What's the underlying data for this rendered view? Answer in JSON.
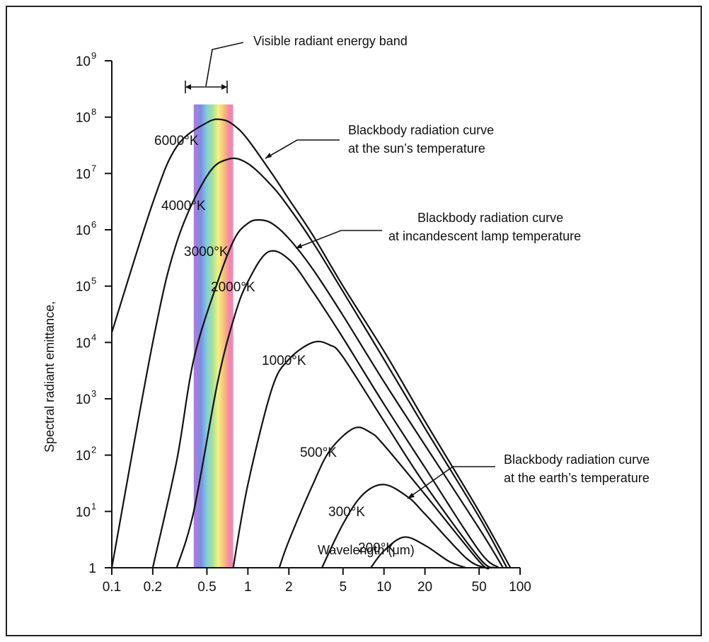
{
  "chart_data": {
    "type": "line",
    "title": "",
    "xlabel": "Wavelength (μm)",
    "ylabel": "Spectral radiant emittance,",
    "x_scale": "log",
    "y_scale": "log",
    "xlim": [
      0.1,
      100
    ],
    "ylim": [
      1,
      1000000000
    ],
    "x_ticks": [
      {
        "v": 0.1,
        "label": "0.1"
      },
      {
        "v": 0.2,
        "label": "0.2"
      },
      {
        "v": 0.5,
        "label": "0.5"
      },
      {
        "v": 1,
        "label": "1"
      },
      {
        "v": 2,
        "label": "2"
      },
      {
        "v": 5,
        "label": "5"
      },
      {
        "v": 10,
        "label": "10"
      },
      {
        "v": 20,
        "label": "20"
      },
      {
        "v": 50,
        "label": "50"
      },
      {
        "v": 100,
        "label": "100"
      }
    ],
    "y_ticks": [
      {
        "v": 1,
        "base": "1",
        "exp": ""
      },
      {
        "v": 10,
        "base": "10",
        "exp": "1"
      },
      {
        "v": 100,
        "base": "10",
        "exp": "2"
      },
      {
        "v": 1000,
        "base": "10",
        "exp": "3"
      },
      {
        "v": 10000,
        "base": "10",
        "exp": "4"
      },
      {
        "v": 100000,
        "base": "10",
        "exp": "5"
      },
      {
        "v": 1000000,
        "base": "10",
        "exp": "6"
      },
      {
        "v": 10000000,
        "base": "10",
        "exp": "7"
      },
      {
        "v": 100000000,
        "base": "10",
        "exp": "8"
      },
      {
        "v": 1000000000,
        "base": "10",
        "exp": "9"
      }
    ],
    "visible_band": {
      "x_start": 0.4,
      "x_end": 0.78,
      "label": "Visible radiant energy band"
    },
    "series": [
      {
        "name": "6000°K",
        "x": [
          0.1,
          0.2,
          0.3,
          0.5,
          0.65,
          0.8,
          1,
          1.5,
          2,
          3,
          5,
          10,
          20,
          50,
          85
        ],
        "y": [
          15000,
          3000000,
          30000000,
          80000000,
          90000000,
          70000000,
          40000000,
          10000000,
          3500000,
          800000,
          100000,
          7000,
          400,
          10,
          1
        ]
      },
      {
        "name": "4000°K",
        "x": [
          0.1,
          0.2,
          0.3,
          0.5,
          0.72,
          1,
          1.5,
          2,
          3,
          5,
          10,
          20,
          50,
          80
        ],
        "y": [
          1,
          10000,
          600000,
          9000000,
          18000000,
          15000000,
          6000000,
          2500000,
          600000,
          80000,
          5000,
          300,
          8,
          1
        ]
      },
      {
        "name": "3000°K",
        "x": [
          0.2,
          0.3,
          0.4,
          0.6,
          0.8,
          1,
          1.2,
          1.5,
          2,
          3,
          5,
          10,
          20,
          50,
          75
        ],
        "y": [
          1,
          80,
          5000,
          120000,
          700000,
          1300000,
          1500000,
          1300000,
          700000,
          200000,
          30000,
          2000,
          150,
          5,
          1
        ]
      },
      {
        "name": "2000°K",
        "x": [
          0.3,
          0.4,
          0.6,
          0.8,
          1,
          1.4,
          2,
          3,
          5,
          10,
          20,
          50,
          70
        ],
        "y": [
          1,
          10,
          2000,
          30000,
          120000,
          400000,
          300000,
          80000,
          12000,
          800,
          60,
          2,
          1
        ]
      },
      {
        "name": "1000°K",
        "x": [
          0.78,
          1,
          1.5,
          2,
          3,
          4,
          5,
          10,
          20,
          50,
          65
        ],
        "y": [
          1,
          30,
          1500,
          5000,
          10000,
          9000,
          5500,
          400,
          30,
          1.5,
          1
        ]
      },
      {
        "name": "500°K",
        "x": [
          1.7,
          2,
          3,
          4,
          6,
          8,
          10,
          20,
          50,
          60
        ],
        "y": [
          1,
          3,
          30,
          120,
          300,
          250,
          150,
          20,
          1.3,
          1
        ]
      },
      {
        "name": "300°K",
        "x": [
          3.5,
          5,
          7,
          10,
          15,
          20,
          40,
          55
        ],
        "y": [
          1,
          6,
          20,
          30,
          18,
          9,
          1.5,
          1
        ]
      },
      {
        "name": "200°K",
        "x": [
          8,
          10,
          14,
          20,
          30,
          40
        ],
        "y": [
          1,
          2,
          3.5,
          2.5,
          1.3,
          1
        ]
      }
    ],
    "annotations": [
      {
        "lines": [
          "Blackbody radiation curve",
          "at the sun’s temperature"
        ]
      },
      {
        "lines": [
          "Blackbody radiation curve",
          "at incandescent lamp temperature"
        ]
      },
      {
        "lines": [
          "Blackbody radiation curve",
          "at the earth’s temperature"
        ]
      }
    ]
  }
}
